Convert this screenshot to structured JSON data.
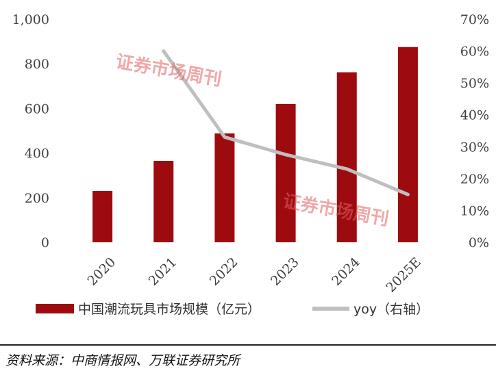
{
  "chart_data": {
    "type": "bar",
    "categories": [
      "2020",
      "2021",
      "2022",
      "2023",
      "2024",
      "2025E"
    ],
    "series": [
      {
        "name": "中国潮流玩具市场规模（亿元）",
        "type": "bar",
        "axis": "left",
        "values": [
          230,
          365,
          488,
          620,
          762,
          875
        ],
        "color": "#9e0b0f"
      },
      {
        "name": "yoy（右轴）",
        "type": "line",
        "axis": "right",
        "values": [
          null,
          0.6,
          0.33,
          0.275,
          0.23,
          0.15
        ],
        "color": "#bfbfbf"
      }
    ],
    "y_left": {
      "min": 0,
      "max": 1000,
      "ticks": [
        0,
        200,
        400,
        600,
        800,
        1000
      ],
      "tick_labels": [
        "0",
        "200",
        "400",
        "600",
        "800",
        "1,000"
      ]
    },
    "y_right": {
      "min": 0,
      "max": 0.7,
      "ticks": [
        0,
        0.1,
        0.2,
        0.3,
        0.4,
        0.5,
        0.6,
        0.7
      ],
      "tick_labels": [
        "0%",
        "10%",
        "20%",
        "30%",
        "40%",
        "50%",
        "60%",
        "70%"
      ]
    },
    "grid": false,
    "legend_position": "bottom"
  },
  "watermarks": [
    "证券市场周刊",
    "证券市场周刊"
  ],
  "source_note": "资料来源：中商情报网、万联证券研究所"
}
